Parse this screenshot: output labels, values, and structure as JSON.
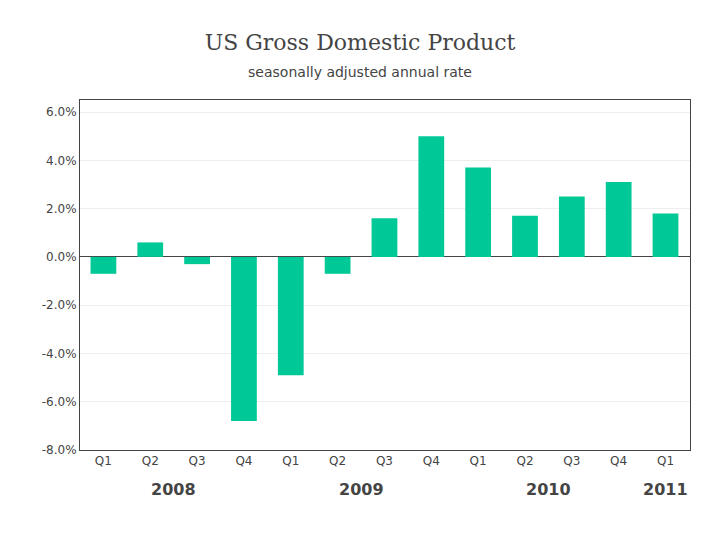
{
  "chart_data": {
    "type": "bar",
    "title": "US Gross Domestic Product",
    "subtitle": "seasonally adjusted annual rate",
    "categories": [
      "Q1",
      "Q2",
      "Q3",
      "Q4",
      "Q1",
      "Q2",
      "Q3",
      "Q4",
      "Q1",
      "Q2",
      "Q3",
      "Q4",
      "Q1"
    ],
    "values": [
      -0.7,
      0.6,
      -0.3,
      -6.8,
      -4.9,
      -0.7,
      1.6,
      5.0,
      3.7,
      1.7,
      2.5,
      3.1,
      1.8
    ],
    "annotations": [
      "2008",
      "2009",
      "2010",
      "2011"
    ],
    "color": "#00C896",
    "ylim": [
      -8.0,
      6.5
    ],
    "yticks": [
      {
        "value": -8.0,
        "label": "-8.0%"
      },
      {
        "value": -6.0,
        "label": "-6.0%"
      },
      {
        "value": -4.0,
        "label": "-4.0%"
      },
      {
        "value": -2.0,
        "label": "-2.0%"
      },
      {
        "value": 0.0,
        "label": "0.0%"
      },
      {
        "value": 2.0,
        "label": "2.0%"
      },
      {
        "value": 4.0,
        "label": "4.0%"
      },
      {
        "value": 6.0,
        "label": "6.0%"
      }
    ],
    "grid": true
  }
}
